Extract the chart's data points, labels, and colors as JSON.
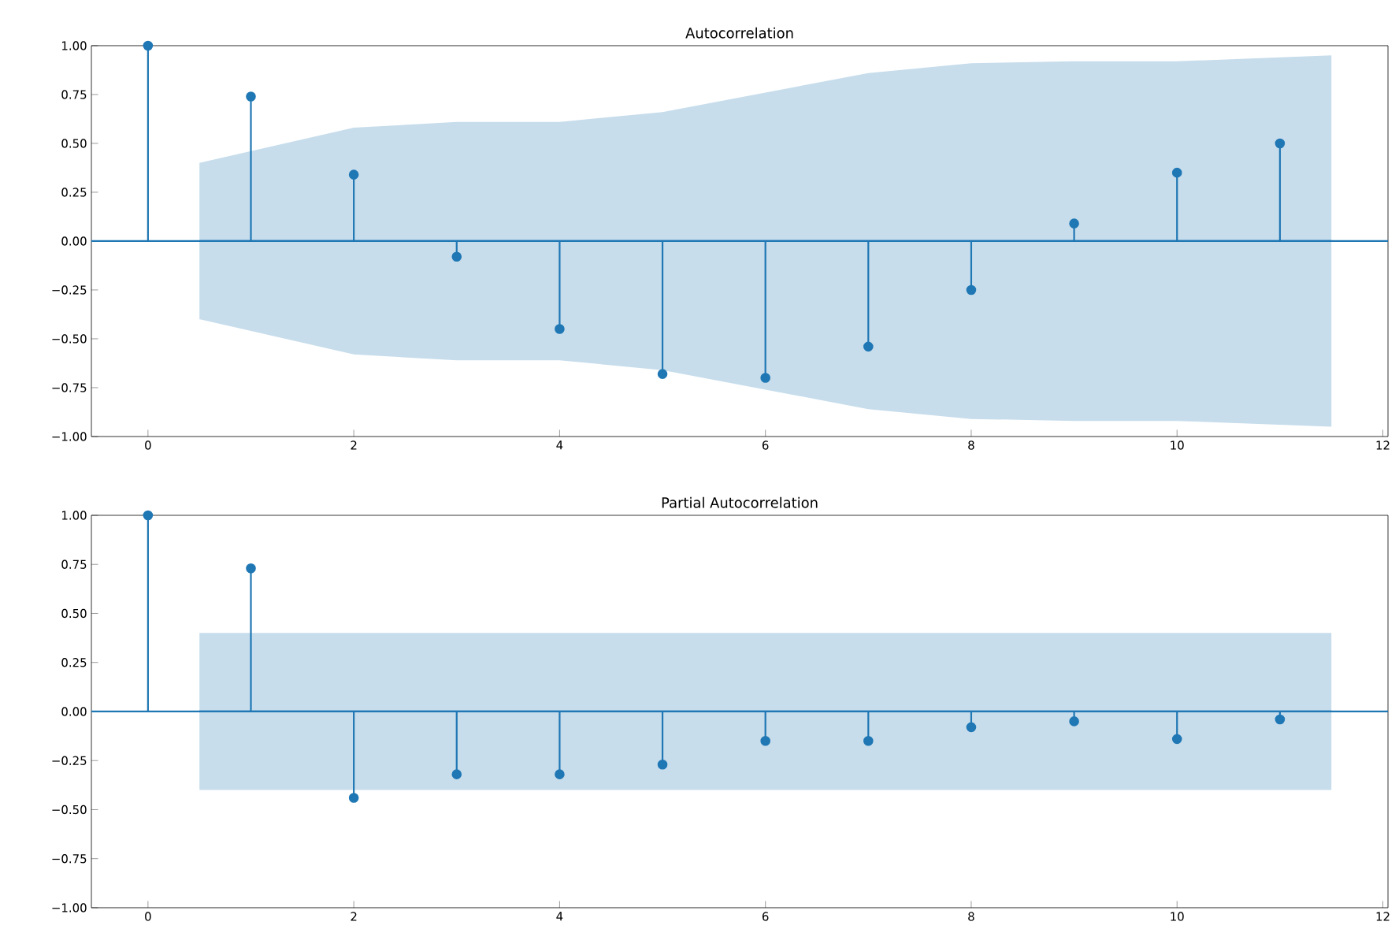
{
  "chart_data": [
    {
      "type": "lollipop",
      "title": "Autocorrelation",
      "xlim": [
        -0.55,
        12.05
      ],
      "ylim": [
        -1,
        1
      ],
      "xticks": [
        0,
        2,
        4,
        6,
        8,
        10,
        12
      ],
      "yticks": [
        {
          "value": -1,
          "label": "−1.00"
        },
        {
          "value": -0.75,
          "label": "−0.75"
        },
        {
          "value": -0.5,
          "label": "−0.50"
        },
        {
          "value": -0.25,
          "label": "−0.25"
        },
        {
          "value": 0,
          "label": "0.00"
        },
        {
          "value": 0.25,
          "label": "0.25"
        },
        {
          "value": 0.5,
          "label": "0.50"
        },
        {
          "value": 0.75,
          "label": "0.75"
        },
        {
          "value": 1,
          "label": "1.00"
        }
      ],
      "ref_lines": [
        {
          "axis": "y",
          "value": 0,
          "color": "#1f77b4"
        }
      ],
      "series": [
        {
          "type": "line",
          "color": "#1f77b4",
          "x": [
            0.5,
            2,
            3,
            4,
            5,
            6,
            7,
            8,
            9,
            10,
            11.5
          ],
          "values": [
            0,
            0,
            0,
            0,
            0,
            0,
            0,
            0,
            0,
            0,
            0
          ],
          "lower": [
            -0.4,
            -0.58,
            -0.61,
            -0.61,
            -0.66,
            -0.76,
            -0.86,
            -0.91,
            -0.92,
            -0.92,
            -0.95
          ],
          "upper": [
            0.4,
            0.58,
            0.61,
            0.61,
            0.66,
            0.76,
            0.86,
            0.91,
            0.92,
            0.92,
            0.95
          ]
        },
        {
          "marker": "circle",
          "color": "#1f77b4",
          "x": [
            0,
            1,
            2,
            3,
            4,
            5,
            6,
            7,
            8,
            9,
            10,
            11
          ],
          "values": [
            1.0,
            0.74,
            0.34,
            -0.08,
            -0.45,
            -0.68,
            -0.7,
            -0.54,
            -0.25,
            0.09,
            0.35,
            0.5
          ]
        }
      ]
    },
    {
      "type": "lollipop",
      "title": "Partial Autocorrelation",
      "xlim": [
        -0.55,
        12.05
      ],
      "ylim": [
        -1,
        1
      ],
      "xticks": [
        0,
        2,
        4,
        6,
        8,
        10,
        12
      ],
      "yticks": [
        {
          "value": -1,
          "label": "−1.00"
        },
        {
          "value": -0.75,
          "label": "−0.75"
        },
        {
          "value": -0.5,
          "label": "−0.50"
        },
        {
          "value": -0.25,
          "label": "−0.25"
        },
        {
          "value": 0,
          "label": "0.00"
        },
        {
          "value": 0.25,
          "label": "0.25"
        },
        {
          "value": 0.5,
          "label": "0.50"
        },
        {
          "value": 0.75,
          "label": "0.75"
        },
        {
          "value": 1,
          "label": "1.00"
        }
      ],
      "ref_lines": [
        {
          "axis": "y",
          "value": 0,
          "color": "#1f77b4"
        }
      ],
      "series": [
        {
          "type": "line",
          "color": "#1f77b4",
          "x": [
            0.5,
            2,
            3,
            4,
            5,
            6,
            7,
            8,
            9,
            10,
            11.5
          ],
          "values": [
            0,
            0,
            0,
            0,
            0,
            0,
            0,
            0,
            0,
            0,
            0
          ],
          "lower": [
            -0.4,
            -0.4,
            -0.4,
            -0.4,
            -0.4,
            -0.4,
            -0.4,
            -0.4,
            -0.4,
            -0.4,
            -0.4
          ],
          "upper": [
            0.4,
            0.4,
            0.4,
            0.4,
            0.4,
            0.4,
            0.4,
            0.4,
            0.4,
            0.4,
            0.4
          ]
        },
        {
          "marker": "circle",
          "color": "#1f77b4",
          "x": [
            0,
            1,
            2,
            3,
            4,
            5,
            6,
            7,
            8,
            9,
            10,
            11
          ],
          "values": [
            1.0,
            0.73,
            -0.44,
            -0.32,
            -0.32,
            -0.27,
            -0.15,
            -0.15,
            -0.08,
            -0.05,
            -0.14,
            -0.04
          ]
        }
      ]
    }
  ]
}
